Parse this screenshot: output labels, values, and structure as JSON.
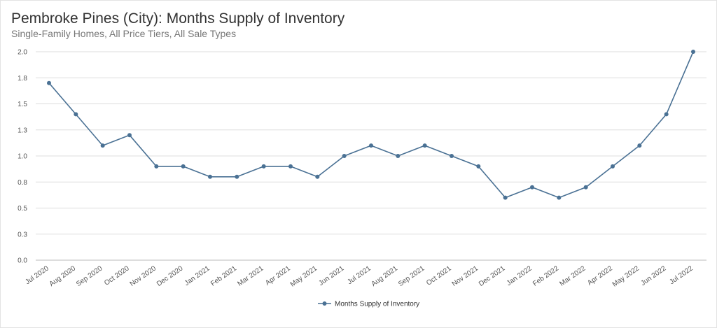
{
  "title": "Pembroke Pines (City): Months Supply of Inventory",
  "subtitle": "Single-Family Homes, All Price Tiers, All Sale Types",
  "colors": {
    "series": "#4a7194",
    "grid": "#dddddd",
    "axis": "#bbbbbb"
  },
  "chart_data": {
    "type": "line",
    "categories": [
      "Jul 2020",
      "Aug 2020",
      "Sep 2020",
      "Oct 2020",
      "Nov 2020",
      "Dec 2020",
      "Jan 2021",
      "Feb 2021",
      "Mar 2021",
      "Apr 2021",
      "May 2021",
      "Jun 2021",
      "Jul 2021",
      "Aug 2021",
      "Sep 2021",
      "Oct 2021",
      "Nov 2021",
      "Dec 2021",
      "Jan 2022",
      "Feb 2022",
      "Mar 2022",
      "Apr 2022",
      "May 2022",
      "Jun 2022",
      "Jul 2022"
    ],
    "series": [
      {
        "name": "Months Supply of Inventory",
        "values": [
          1.7,
          1.4,
          1.1,
          1.2,
          0.9,
          0.9,
          0.8,
          0.8,
          0.9,
          0.9,
          0.8,
          1.0,
          1.1,
          1.0,
          1.1,
          1.0,
          0.9,
          0.6,
          0.7,
          0.6,
          0.7,
          0.9,
          1.1,
          1.4,
          2.0
        ]
      }
    ],
    "ylim": [
      0,
      2.0
    ],
    "yticks": [
      "0.0",
      "0.3",
      "0.5",
      "0.8",
      "1.0",
      "1.3",
      "1.5",
      "1.8",
      "2.0"
    ],
    "grid": true,
    "legend_position": "bottom-center"
  }
}
